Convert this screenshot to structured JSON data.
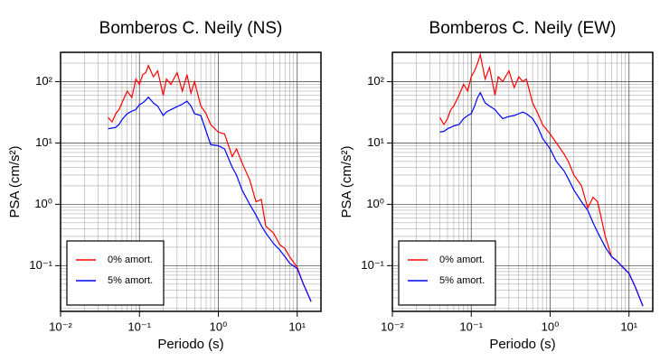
{
  "chart_data": [
    {
      "type": "line",
      "title": "Bomberos C. Neily (NS)",
      "xlabel": "Periodo (s)",
      "ylabel": "PSA (cm/s²)",
      "xscale": "log",
      "yscale": "log",
      "grid": true,
      "legend": "lower left",
      "xlim": [
        0.01,
        20
      ],
      "ylim": [
        0.018,
        300
      ],
      "xticks": [
        {
          "value": 0.01,
          "label": "10⁻²"
        },
        {
          "value": 0.1,
          "label": "10⁻¹"
        },
        {
          "value": 1,
          "label": "10⁰"
        },
        {
          "value": 10,
          "label": "10¹"
        }
      ],
      "yticks": [
        {
          "value": 0.1,
          "label": "10⁻¹"
        },
        {
          "value": 1,
          "label": "10⁰"
        },
        {
          "value": 10,
          "label": "10¹"
        },
        {
          "value": 100,
          "label": "10²"
        }
      ],
      "x_minor_ticks": [
        0.02,
        0.03,
        0.04,
        0.05,
        0.06,
        0.07,
        0.08,
        0.09,
        0.2,
        0.3,
        0.4,
        0.5,
        0.6,
        0.7,
        0.8,
        0.9,
        2,
        3,
        4,
        5,
        6,
        7,
        8,
        9,
        20
      ],
      "y_minor_ticks": [
        0.02,
        0.03,
        0.04,
        0.05,
        0.06,
        0.07,
        0.08,
        0.09,
        0.2,
        0.3,
        0.4,
        0.5,
        0.6,
        0.7,
        0.8,
        0.9,
        2,
        3,
        4,
        5,
        6,
        7,
        8,
        9,
        20,
        30,
        40,
        50,
        60,
        70,
        80,
        90,
        200,
        300
      ],
      "x": [
        0.04,
        0.045,
        0.05,
        0.055,
        0.06,
        0.07,
        0.08,
        0.09,
        0.1,
        0.11,
        0.12,
        0.13,
        0.15,
        0.17,
        0.2,
        0.22,
        0.25,
        0.3,
        0.35,
        0.4,
        0.45,
        0.5,
        0.6,
        0.7,
        0.8,
        1,
        1.2,
        1.5,
        1.7,
        2,
        2.5,
        3,
        3.5,
        4,
        5,
        6,
        7,
        8,
        10,
        12,
        15
      ],
      "series": [
        {
          "name": "0% amort.",
          "color": "#ff0000",
          "values": [
            26,
            22,
            30,
            35,
            45,
            70,
            55,
            110,
            90,
            130,
            140,
            183,
            120,
            150,
            60,
            110,
            90,
            140,
            70,
            130,
            65,
            100,
            40,
            30,
            20,
            15,
            14,
            6,
            8,
            4.7,
            2.5,
            1.1,
            1.2,
            0.44,
            0.34,
            0.22,
            0.19,
            0.14,
            0.094,
            0.05,
            0.026
          ]
        },
        {
          "name": "5% amort.",
          "color": "#0000ff",
          "values": [
            17,
            17.5,
            18,
            20,
            24,
            30,
            33,
            35,
            42,
            45,
            50,
            56,
            45,
            40,
            28,
            32,
            35,
            39,
            43,
            48,
            40,
            30,
            28,
            15.5,
            9.4,
            9,
            8,
            4,
            3,
            1.7,
            1,
            0.67,
            0.45,
            0.34,
            0.23,
            0.18,
            0.14,
            0.11,
            0.09,
            0.05,
            0.026
          ]
        }
      ]
    },
    {
      "type": "line",
      "title": "Bomberos C. Neily (EW)",
      "xlabel": "Periodo (s)",
      "ylabel": "PSA (cm/s²)",
      "xscale": "log",
      "yscale": "log",
      "grid": true,
      "legend": "lower left",
      "xlim": [
        0.01,
        20
      ],
      "ylim": [
        0.018,
        300
      ],
      "xticks": [
        {
          "value": 0.01,
          "label": "10⁻²"
        },
        {
          "value": 0.1,
          "label": "10⁻¹"
        },
        {
          "value": 1,
          "label": "10⁰"
        },
        {
          "value": 10,
          "label": "10¹"
        }
      ],
      "yticks": [
        {
          "value": 0.1,
          "label": "10⁻¹"
        },
        {
          "value": 1,
          "label": "10⁰"
        },
        {
          "value": 10,
          "label": "10¹"
        },
        {
          "value": 100,
          "label": "10²"
        }
      ],
      "x_minor_ticks": [
        0.02,
        0.03,
        0.04,
        0.05,
        0.06,
        0.07,
        0.08,
        0.09,
        0.2,
        0.3,
        0.4,
        0.5,
        0.6,
        0.7,
        0.8,
        0.9,
        2,
        3,
        4,
        5,
        6,
        7,
        8,
        9,
        20
      ],
      "y_minor_ticks": [
        0.02,
        0.03,
        0.04,
        0.05,
        0.06,
        0.07,
        0.08,
        0.09,
        0.2,
        0.3,
        0.4,
        0.5,
        0.6,
        0.7,
        0.8,
        0.9,
        2,
        3,
        4,
        5,
        6,
        7,
        8,
        9,
        20,
        30,
        40,
        50,
        60,
        70,
        80,
        90,
        200,
        300
      ],
      "x": [
        0.04,
        0.045,
        0.05,
        0.055,
        0.06,
        0.07,
        0.08,
        0.09,
        0.1,
        0.11,
        0.12,
        0.13,
        0.15,
        0.17,
        0.2,
        0.22,
        0.25,
        0.3,
        0.35,
        0.4,
        0.45,
        0.5,
        0.6,
        0.7,
        0.8,
        1,
        1.2,
        1.5,
        1.7,
        2,
        2.5,
        3,
        3.5,
        4,
        5,
        6,
        7,
        8,
        10,
        12,
        15
      ],
      "series": [
        {
          "name": "0% amort.",
          "color": "#ff0000",
          "values": [
            26,
            20,
            25,
            35,
            40,
            60,
            90,
            70,
            120,
            150,
            200,
            275,
            110,
            170,
            60,
            120,
            100,
            150,
            80,
            120,
            100,
            110,
            45,
            30,
            20,
            14,
            10,
            6.6,
            5,
            3,
            2,
            0.87,
            1.3,
            1.1,
            0.3,
            0.14,
            0.12,
            0.1,
            0.075,
            0.045,
            0.022
          ]
        },
        {
          "name": "5% amort.",
          "color": "#0000ff",
          "values": [
            15,
            15.5,
            17,
            18,
            19,
            20,
            25,
            28,
            30,
            40,
            55,
            66,
            45,
            40,
            35,
            30,
            25,
            27,
            28,
            30,
            32,
            30,
            25,
            18,
            12,
            8,
            5,
            3.5,
            2.6,
            1.7,
            1.1,
            0.8,
            0.5,
            0.35,
            0.2,
            0.14,
            0.12,
            0.1,
            0.075,
            0.045,
            0.022
          ]
        }
      ]
    }
  ]
}
